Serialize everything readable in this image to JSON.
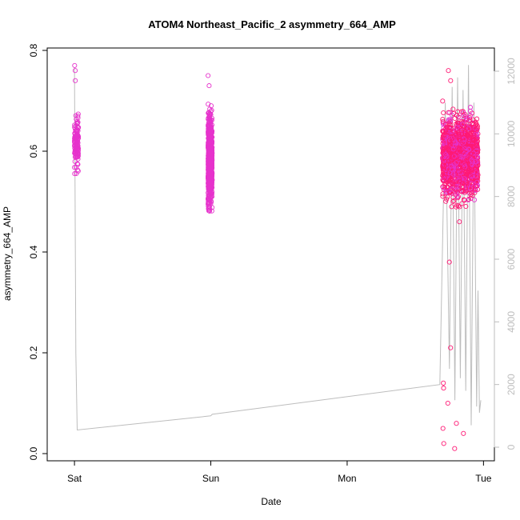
{
  "chart_data": {
    "type": "scatter",
    "title": "ATOM4 Northeast_Pacific_2 asymmetry_664_AMP",
    "xlabel": "Date",
    "ylabel": "asymmetry_664_AMP",
    "x_ticks": [
      "Sat",
      "Sun",
      "Mon",
      "Tue"
    ],
    "x_tick_values_days": [
      0,
      1,
      2,
      3
    ],
    "xlim_days": [
      -0.2,
      3.08
    ],
    "y_ticks": [
      "0.0",
      "0.2",
      "0.4",
      "0.6",
      "0.8"
    ],
    "ylim": [
      0.0,
      0.8
    ],
    "y2_ticks": [
      "0",
      "2000",
      "4000",
      "6000",
      "8000",
      "10000",
      "12000"
    ],
    "y2lim": [
      0,
      12000
    ],
    "grid": false,
    "legend": "none",
    "colors": {
      "points_early": "#e633cc",
      "points_late": "#ff1a75",
      "line": "#bdbdbd",
      "axis": "#000000",
      "secondary_axis": "#bdbdbd"
    },
    "series": [
      {
        "kind": "points",
        "axis": "left",
        "clusters": [
          {
            "x_range_days": [
              0.0,
              0.03
            ],
            "y_range": [
              0.54,
              0.69
            ],
            "y_outliers": [
              0.74,
              0.76,
              0.77
            ],
            "count": 120
          },
          {
            "x_range_days": [
              0.98,
              1.01
            ],
            "y_range": [
              0.44,
              0.72
            ],
            "y_outliers": [
              0.73,
              0.75
            ],
            "count": 700
          },
          {
            "x_range_days": [
              2.7,
              2.96
            ],
            "y_range": [
              0.46,
              0.72
            ],
            "y_outliers": [
              0.01,
              0.02,
              0.04,
              0.05,
              0.06,
              0.1,
              0.13,
              0.14,
              0.21,
              0.38,
              0.46,
              0.74,
              0.76
            ],
            "count": 1500
          }
        ]
      },
      {
        "kind": "line",
        "axis": "right",
        "points_x_days": [
          0,
          0.01,
          0.02,
          1.0,
          1.01,
          2.68,
          2.72,
          2.75,
          2.77,
          2.79,
          2.81,
          2.83,
          2.85,
          2.87,
          2.89,
          2.91,
          2.93,
          2.95,
          2.96,
          2.97,
          2.98
        ],
        "points_y": [
          12100,
          3000,
          550,
          1000,
          1050,
          2000,
          11000,
          2500,
          11500,
          1500,
          11800,
          2200,
          11400,
          1800,
          12200,
          700,
          11000,
          1300,
          5000,
          1100,
          1500
        ]
      }
    ]
  }
}
